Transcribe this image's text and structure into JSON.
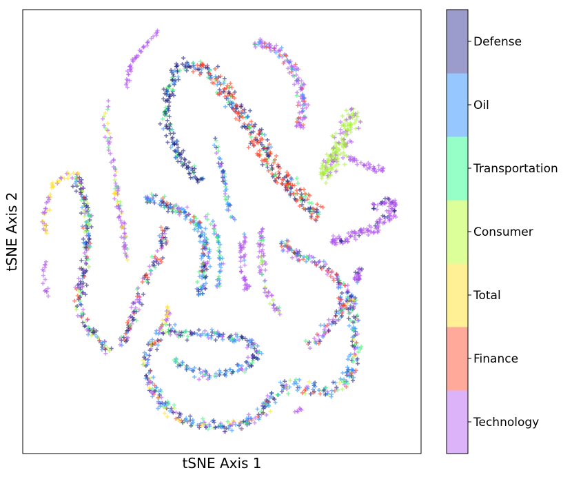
{
  "chart_data": {
    "type": "scatter",
    "xlabel": "tSNE Axis 1",
    "ylabel": "tSNE Axis 2",
    "grid": false,
    "ticks_visible": false,
    "marker": "plus",
    "colorbar": {
      "position": "right",
      "categories": [
        "Technology",
        "Finance",
        "Total",
        "Consumer",
        "Transportation",
        "Oil",
        "Defense"
      ],
      "colors": [
        "#dcb2f8",
        "#ffa99a",
        "#fff096",
        "#dcff9a",
        "#96ffc8",
        "#96c8ff",
        "#9b9bcc"
      ]
    },
    "series": [
      {
        "name": "Technology",
        "color": "#b054f0"
      },
      {
        "name": "Finance",
        "color": "#ff3b1f"
      },
      {
        "name": "Total",
        "color": "#ffe020"
      },
      {
        "name": "Consumer",
        "color": "#a8f03c"
      },
      {
        "name": "Transportation",
        "color": "#3cf06e"
      },
      {
        "name": "Oil",
        "color": "#2890ff"
      },
      {
        "name": "Defense",
        "color": "#1a1a7a"
      }
    ]
  }
}
